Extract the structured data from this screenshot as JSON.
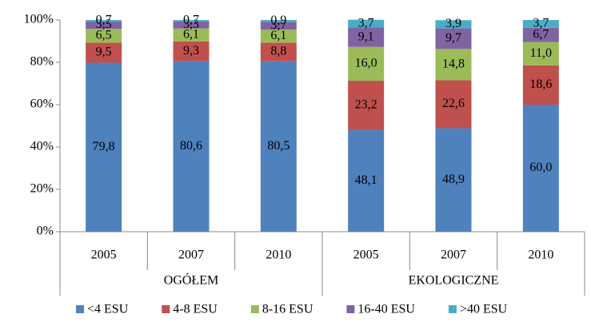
{
  "chart_data": {
    "type": "stacked_bar",
    "groups": [
      {
        "label": "OGÓŁEM",
        "categories": [
          "2005",
          "2007",
          "2010"
        ]
      },
      {
        "label": "EKOLOGICZNE",
        "categories": [
          "2005",
          "2007",
          "2010"
        ]
      }
    ],
    "series": [
      {
        "name": "<4 ESU",
        "color": "#4f81bd",
        "values": [
          79.8,
          80.6,
          80.5,
          48.1,
          48.9,
          60.0
        ],
        "value_labels": [
          "79,8",
          "80,6",
          "80,5",
          "48,1",
          "48,9",
          "60,0"
        ]
      },
      {
        "name": "4-8 ESU",
        "color": "#c0504d",
        "values": [
          9.5,
          9.3,
          8.8,
          23.2,
          22.6,
          18.6
        ],
        "value_labels": [
          "9,5",
          "9,3",
          "8,8",
          "23,2",
          "22,6",
          "18,6"
        ]
      },
      {
        "name": "8-16 ESU",
        "color": "#9bbb59",
        "values": [
          6.5,
          6.1,
          6.1,
          16.0,
          14.8,
          11.0
        ],
        "value_labels": [
          "6,5",
          "6,1",
          "6,1",
          "16,0",
          "14,8",
          "11,0"
        ]
      },
      {
        "name": "16-40 ESU",
        "color": "#8064a2",
        "values": [
          3.5,
          3.3,
          3.7,
          9.1,
          9.7,
          6.7
        ],
        "value_labels": [
          "3,5",
          "3,3",
          "3,7",
          "9,1",
          "9,7",
          "6,7"
        ]
      },
      {
        "name": ">40 ESU",
        "color": "#4bacc6",
        "values": [
          0.7,
          0.7,
          0.9,
          3.7,
          3.9,
          3.7
        ],
        "value_labels": [
          "0,7",
          "0,7",
          "0,9",
          "3,7",
          "3,9",
          "3,7"
        ]
      }
    ],
    "ylim": [
      0,
      100
    ],
    "yticks": [
      {
        "value": 0,
        "label": "0%"
      },
      {
        "value": 20,
        "label": "20%"
      },
      {
        "value": 40,
        "label": "40%"
      },
      {
        "value": 60,
        "label": "60%"
      },
      {
        "value": 80,
        "label": "80%"
      },
      {
        "value": 100,
        "label": "100%"
      }
    ],
    "grid": false,
    "legend": "bottom"
  }
}
